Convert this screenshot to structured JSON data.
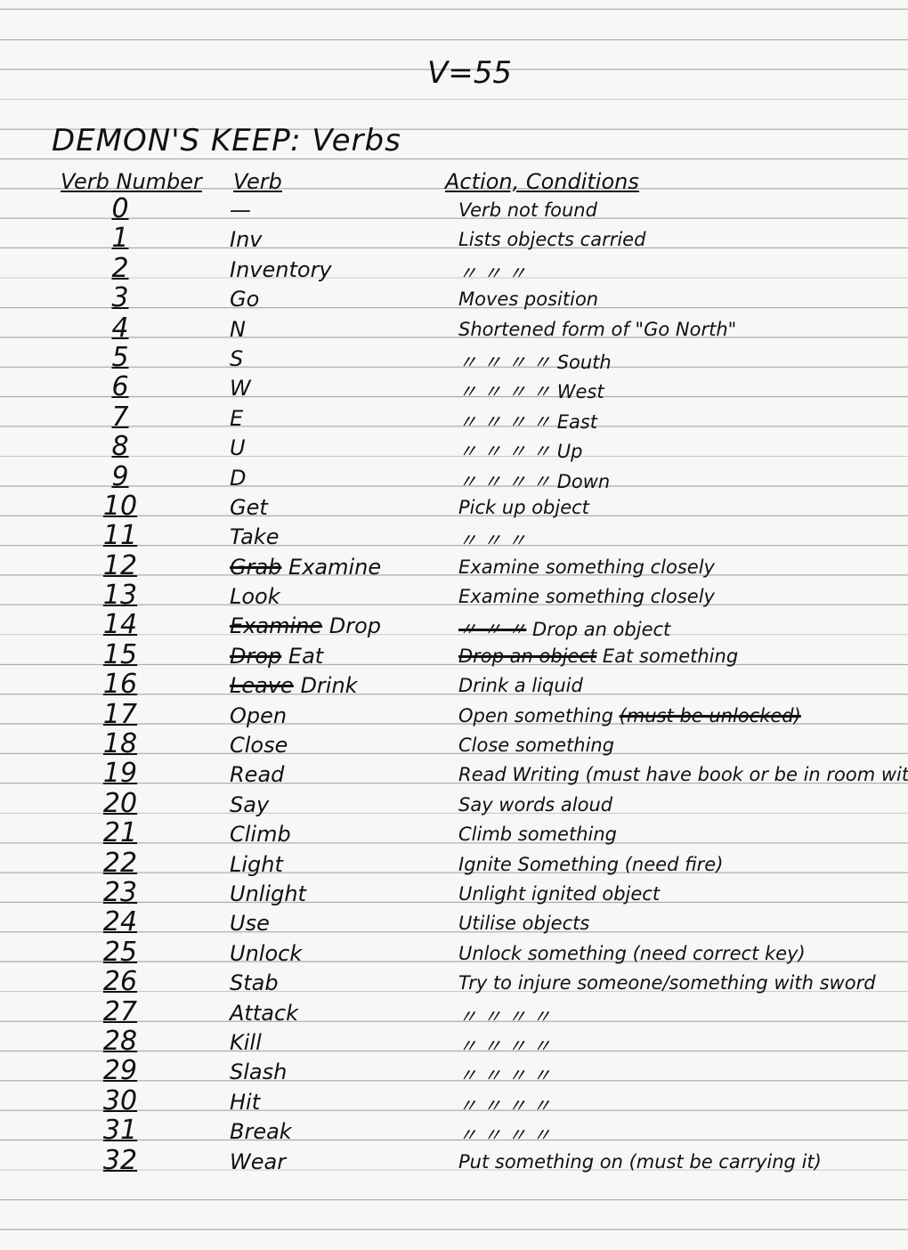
{
  "header": {
    "verb_count": "V=55",
    "title": "DEMON'S KEEP: Verbs",
    "columns": [
      "Verb Number",
      "Verb",
      "Action, Conditions"
    ]
  },
  "rows": [
    {
      "num": "0",
      "verb": "—",
      "act": "Verb not found"
    },
    {
      "num": "1",
      "verb": "Inv",
      "act": "Lists objects carried"
    },
    {
      "num": "2",
      "verb": "Inventory",
      "act": "〃    〃    〃"
    },
    {
      "num": "3",
      "verb": "Go",
      "act": "Moves position"
    },
    {
      "num": "4",
      "verb": "N",
      "act": "Shortened form of \"Go North\""
    },
    {
      "num": "5",
      "verb": "S",
      "act": "〃     〃     〃     〃  South"
    },
    {
      "num": "6",
      "verb": "W",
      "act": "〃     〃     〃     〃  West"
    },
    {
      "num": "7",
      "verb": "E",
      "act": "〃     〃     〃     〃  East"
    },
    {
      "num": "8",
      "verb": "U",
      "act": "〃     〃     〃     〃  Up"
    },
    {
      "num": "9",
      "verb": "D",
      "act": "〃     〃     〃     〃  Down"
    },
    {
      "num": "10",
      "verb": "Get",
      "act": "Pick up object"
    },
    {
      "num": "11",
      "verb": "Take",
      "act": "〃  〃  〃"
    },
    {
      "num": "12",
      "verb_struck": "Grab",
      "verb": "Examine",
      "act": "Examine something closely"
    },
    {
      "num": "13",
      "verb": "Look",
      "act": "Examine something closely"
    },
    {
      "num": "14",
      "verb_struck": "Examine",
      "verb": "Drop",
      "act_struck": "〃  〃  〃",
      "act": "Drop an object"
    },
    {
      "num": "15",
      "verb_struck": "Drop",
      "verb": "Eat",
      "act_struck": "Drop an object",
      "act": "Eat something"
    },
    {
      "num": "16",
      "verb_struck": "Leave",
      "verb": "Drink",
      "act": "Drink a liquid"
    },
    {
      "num": "17",
      "verb": "Open",
      "act": "Open something",
      "act_struck_after": "(must be unlocked)"
    },
    {
      "num": "18",
      "verb": "Close",
      "act": "Close something"
    },
    {
      "num": "19",
      "verb": "Read",
      "act": "Read Writing (must have book or be in room with it)"
    },
    {
      "num": "20",
      "verb": "Say",
      "act": "Say words aloud"
    },
    {
      "num": "21",
      "verb": "Climb",
      "act": "Climb something"
    },
    {
      "num": "22",
      "verb": "Light",
      "act": "Ignite Something (need fire)"
    },
    {
      "num": "23",
      "verb": "Unlight",
      "act": "Unlight ignited object"
    },
    {
      "num": "24",
      "verb": "Use",
      "act": "Utilise objects"
    },
    {
      "num": "25",
      "verb": "Unlock",
      "act": "Unlock something (need correct key)"
    },
    {
      "num": "26",
      "verb": "Stab",
      "act": "Try to injure someone/something with sword"
    },
    {
      "num": "27",
      "verb": "Attack",
      "act": "〃         〃          〃           〃"
    },
    {
      "num": "28",
      "verb": "Kill",
      "act": "〃         〃          〃           〃"
    },
    {
      "num": "29",
      "verb": "Slash",
      "act": "〃         〃          〃           〃"
    },
    {
      "num": "30",
      "verb": "Hit",
      "act": "〃         〃          〃           〃"
    },
    {
      "num": "31",
      "verb": "Break",
      "act": "〃         〃          〃           〃"
    },
    {
      "num": "32",
      "verb": "Wear",
      "act": "Put something on (must be carrying it)"
    }
  ]
}
